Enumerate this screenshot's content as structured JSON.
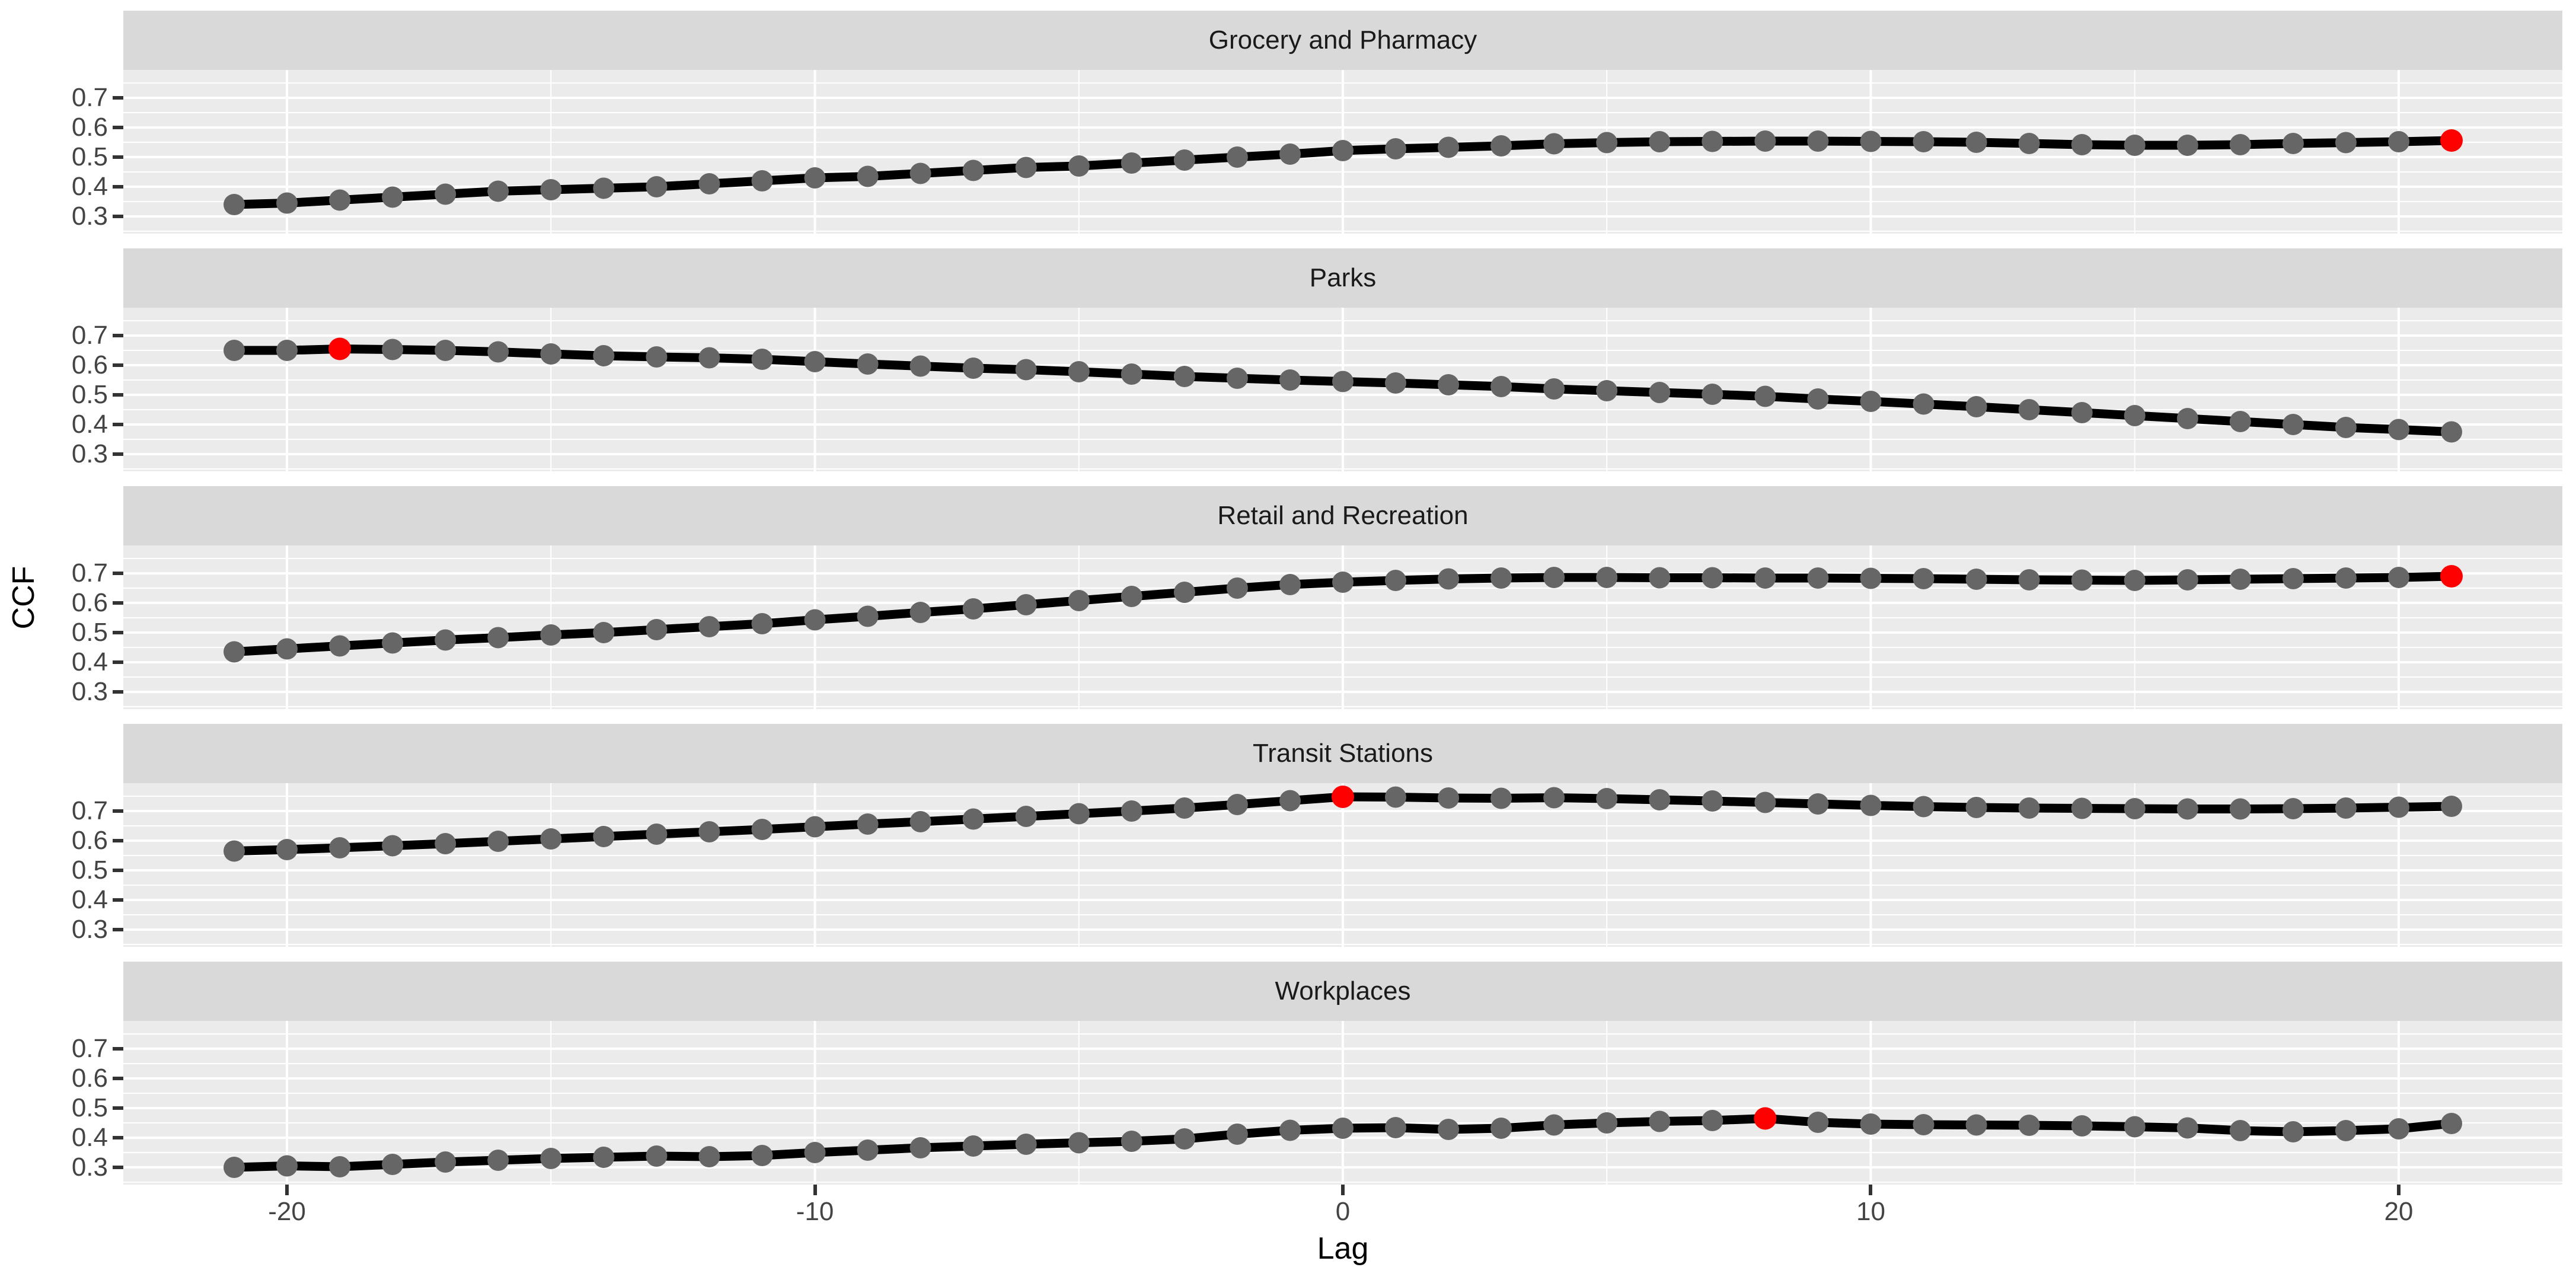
{
  "chart_data": {
    "type": "line",
    "title": "",
    "xlabel": "Lag",
    "ylabel": "CCF",
    "x": [
      -21,
      -20,
      -19,
      -18,
      -17,
      -16,
      -15,
      -14,
      -13,
      -12,
      -11,
      -10,
      -9,
      -8,
      -7,
      -6,
      -5,
      -4,
      -3,
      -2,
      -1,
      0,
      1,
      2,
      3,
      4,
      5,
      6,
      7,
      8,
      9,
      10,
      11,
      12,
      13,
      14,
      15,
      16,
      17,
      18,
      19,
      20,
      21
    ],
    "x_ticks": [
      -20,
      -10,
      0,
      10,
      20
    ],
    "x_minor_ticks": [
      -15,
      -5,
      5,
      15
    ],
    "y_ticks": [
      0.7,
      0.6,
      0.5,
      0.4,
      0.3
    ],
    "y_minor_ticks": [
      0.75,
      0.65,
      0.55,
      0.45,
      0.35,
      0.25
    ],
    "xlim": [
      -23.1,
      23.1
    ],
    "ylim": [
      0.242,
      0.794
    ],
    "grid": true,
    "legend_position": "none",
    "facets": [
      {
        "name": "Grocery and Pharmacy",
        "values": [
          0.34,
          0.345,
          0.355,
          0.365,
          0.375,
          0.385,
          0.39,
          0.395,
          0.4,
          0.41,
          0.42,
          0.43,
          0.435,
          0.445,
          0.455,
          0.465,
          0.47,
          0.48,
          0.49,
          0.5,
          0.51,
          0.522,
          0.528,
          0.533,
          0.538,
          0.545,
          0.549,
          0.552,
          0.553,
          0.554,
          0.554,
          0.553,
          0.552,
          0.55,
          0.546,
          0.542,
          0.54,
          0.54,
          0.542,
          0.546,
          0.549,
          0.552,
          0.556
        ],
        "max_point": {
          "lag": 21,
          "value": 0.556
        }
      },
      {
        "name": "Parks",
        "values": [
          0.65,
          0.65,
          0.655,
          0.653,
          0.65,
          0.645,
          0.638,
          0.632,
          0.628,
          0.625,
          0.62,
          0.612,
          0.604,
          0.597,
          0.59,
          0.585,
          0.578,
          0.57,
          0.562,
          0.556,
          0.55,
          0.545,
          0.54,
          0.534,
          0.528,
          0.52,
          0.514,
          0.508,
          0.502,
          0.495,
          0.486,
          0.478,
          0.469,
          0.46,
          0.45,
          0.44,
          0.43,
          0.42,
          0.41,
          0.4,
          0.39,
          0.383,
          0.375
        ],
        "max_point": {
          "lag": -19,
          "value": 0.655
        }
      },
      {
        "name": "Retail and Recreation",
        "values": [
          0.435,
          0.445,
          0.455,
          0.465,
          0.475,
          0.483,
          0.492,
          0.5,
          0.51,
          0.52,
          0.53,
          0.543,
          0.555,
          0.568,
          0.58,
          0.594,
          0.608,
          0.622,
          0.636,
          0.65,
          0.662,
          0.67,
          0.676,
          0.681,
          0.684,
          0.686,
          0.686,
          0.685,
          0.685,
          0.684,
          0.684,
          0.683,
          0.682,
          0.68,
          0.678,
          0.677,
          0.676,
          0.678,
          0.68,
          0.682,
          0.684,
          0.686,
          0.69
        ],
        "max_point": {
          "lag": 21,
          "value": 0.69
        }
      },
      {
        "name": "Transit Stations",
        "values": [
          0.565,
          0.57,
          0.576,
          0.583,
          0.59,
          0.598,
          0.606,
          0.614,
          0.622,
          0.63,
          0.638,
          0.647,
          0.656,
          0.664,
          0.673,
          0.682,
          0.691,
          0.7,
          0.71,
          0.722,
          0.735,
          0.748,
          0.747,
          0.744,
          0.743,
          0.745,
          0.742,
          0.738,
          0.734,
          0.729,
          0.724,
          0.719,
          0.715,
          0.712,
          0.71,
          0.709,
          0.708,
          0.707,
          0.707,
          0.708,
          0.71,
          0.713,
          0.716
        ],
        "max_point": {
          "lag": 0,
          "value": 0.748
        }
      },
      {
        "name": "Workplaces",
        "values": [
          0.3,
          0.305,
          0.302,
          0.31,
          0.318,
          0.324,
          0.33,
          0.334,
          0.338,
          0.336,
          0.34,
          0.35,
          0.358,
          0.366,
          0.372,
          0.378,
          0.383,
          0.388,
          0.396,
          0.412,
          0.425,
          0.432,
          0.434,
          0.428,
          0.432,
          0.443,
          0.45,
          0.455,
          0.458,
          0.465,
          0.452,
          0.446,
          0.444,
          0.443,
          0.442,
          0.44,
          0.437,
          0.433,
          0.424,
          0.42,
          0.424,
          0.43,
          0.448
        ],
        "max_point": {
          "lag": 8,
          "value": 0.465
        }
      }
    ],
    "colors": {
      "line": "#000000",
      "point": "#666666",
      "max_point": "#FF0000",
      "panel_background": "#EBEBEB",
      "strip_background": "#D9D9D9",
      "gridline": "#FFFFFF",
      "tick_label": "#444444",
      "axis_title": "#000000"
    }
  }
}
